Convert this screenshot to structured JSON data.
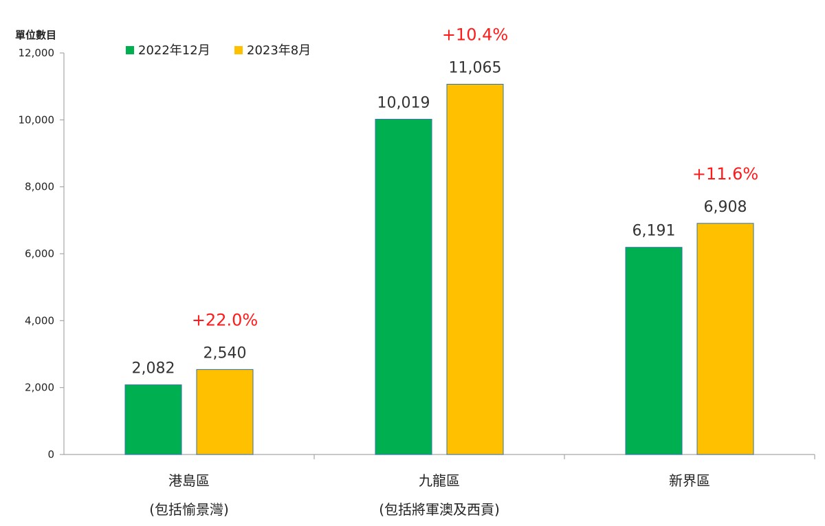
{
  "chart_data": {
    "type": "bar",
    "ylabel": "單位數目",
    "ylim": [
      0,
      12000
    ],
    "yticks": [
      0,
      2000,
      4000,
      6000,
      8000,
      10000,
      12000
    ],
    "ytick_labels": [
      "0",
      "2,000",
      "4,000",
      "6,000",
      "8,000",
      "10,000",
      "12,000"
    ],
    "categories": [
      {
        "line1": "港島區",
        "line2": "(包括愉景灣)"
      },
      {
        "line1": "九龍區",
        "line2": "(包括將軍澳及西貢)"
      },
      {
        "line1": "新界區",
        "line2": ""
      }
    ],
    "series": [
      {
        "name": "2022年12月",
        "color": "#00b050",
        "values": [
          2082,
          10019,
          6191
        ],
        "value_labels": [
          "2,082",
          "10,019",
          "6,191"
        ]
      },
      {
        "name": "2023年8月",
        "color": "#ffc000",
        "values": [
          2540,
          11065,
          6908
        ],
        "value_labels": [
          "2,540",
          "11,065",
          "6,908"
        ]
      }
    ],
    "changes": [
      "+22.0%",
      "+10.4%",
      "+11.6%"
    ],
    "change_color": "#ff1a1a",
    "legend_position": "top-left",
    "grid": false
  }
}
